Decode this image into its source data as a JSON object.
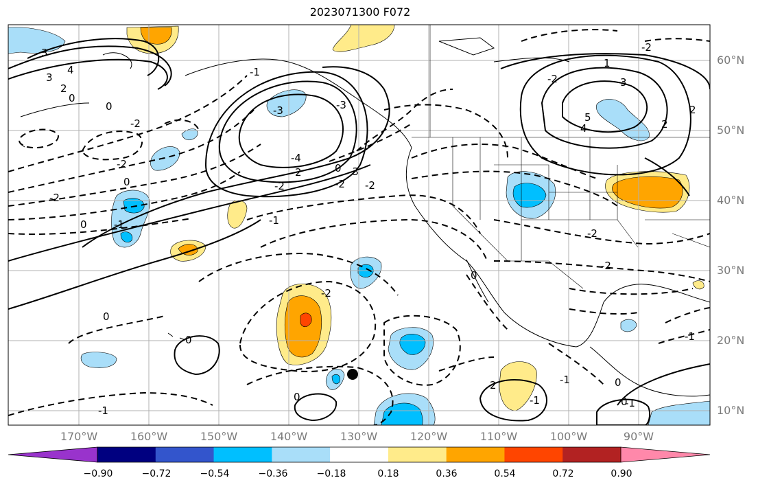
{
  "title": "2023071300 F072",
  "lat_labels": [
    "60°N",
    "50°N",
    "40°N",
    "30°N",
    "20°N",
    "10°N"
  ],
  "lon_labels": [
    "170°W",
    "160°W",
    "150°W",
    "140°W",
    "130°W",
    "120°W",
    "110°W",
    "100°W",
    "90°W"
  ],
  "colorbar": {
    "ticks": [
      "−0.90",
      "−0.72",
      "−0.54",
      "−0.36",
      "−0.18",
      "0.18",
      "0.36",
      "0.54",
      "0.72",
      "0.90"
    ],
    "colors": [
      "#9933cc",
      "#000080",
      "#3355cc",
      "#00bfff",
      "#a9def9",
      "#ffffff",
      "#ffeb8a",
      "#ffa500",
      "#ff4500",
      "#b22222",
      "#ff88aa"
    ]
  },
  "contour_labels": [
    "3",
    "4",
    "3",
    "2",
    "0",
    "-3",
    "0",
    "-2",
    "-2",
    "0",
    "-2",
    "-1",
    "0",
    "-1",
    "-3",
    "-4",
    "0",
    "-2",
    "2",
    "-2",
    "-3",
    "-2",
    "-1",
    "0",
    "0",
    "-1",
    "-2",
    "0",
    "0",
    "2",
    "-1",
    "-1",
    "0",
    "3",
    "2",
    "1",
    "5",
    "4",
    "2",
    "-2",
    "-2",
    "-2",
    "-2",
    "-1",
    "0",
    "-1"
  ]
}
